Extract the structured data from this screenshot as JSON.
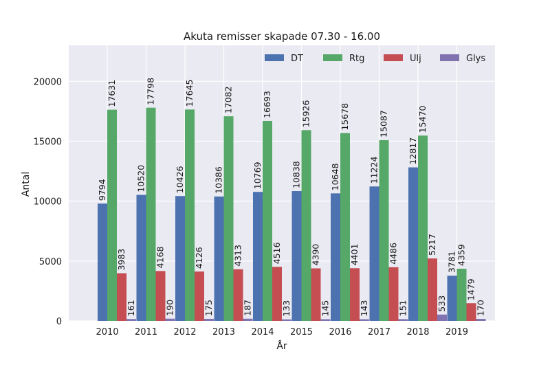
{
  "chart_data": {
    "type": "bar",
    "title": "Akuta remisser skapade 07.30 - 16.00",
    "xlabel": "År",
    "ylabel": "Antal",
    "categories": [
      "2010",
      "2011",
      "2012",
      "2013",
      "2014",
      "2015",
      "2016",
      "2017",
      "2018",
      "2019"
    ],
    "ylim": [
      0,
      23000
    ],
    "yticks": [
      0,
      5000,
      10000,
      15000,
      20000
    ],
    "grid": true,
    "legend_position": "top-right",
    "series": [
      {
        "name": "DT",
        "color": "#4c72b0",
        "values": [
          9794,
          10520,
          10426,
          10386,
          10769,
          10838,
          10648,
          11224,
          12817,
          3781
        ]
      },
      {
        "name": "Rtg",
        "color": "#55a868",
        "values": [
          17631,
          17798,
          17645,
          17082,
          16693,
          15926,
          15678,
          15087,
          15470,
          4359
        ]
      },
      {
        "name": "Ulj",
        "color": "#c44e52",
        "values": [
          3983,
          4168,
          4126,
          4313,
          4516,
          4390,
          4401,
          4486,
          5217,
          1479
        ]
      },
      {
        "name": "Glys",
        "color": "#8172b2",
        "values": [
          161,
          190,
          175,
          187,
          133,
          145,
          143,
          151,
          533,
          170
        ]
      }
    ],
    "background_color": "#eaeaf2",
    "grid_color": "#ffffff"
  }
}
